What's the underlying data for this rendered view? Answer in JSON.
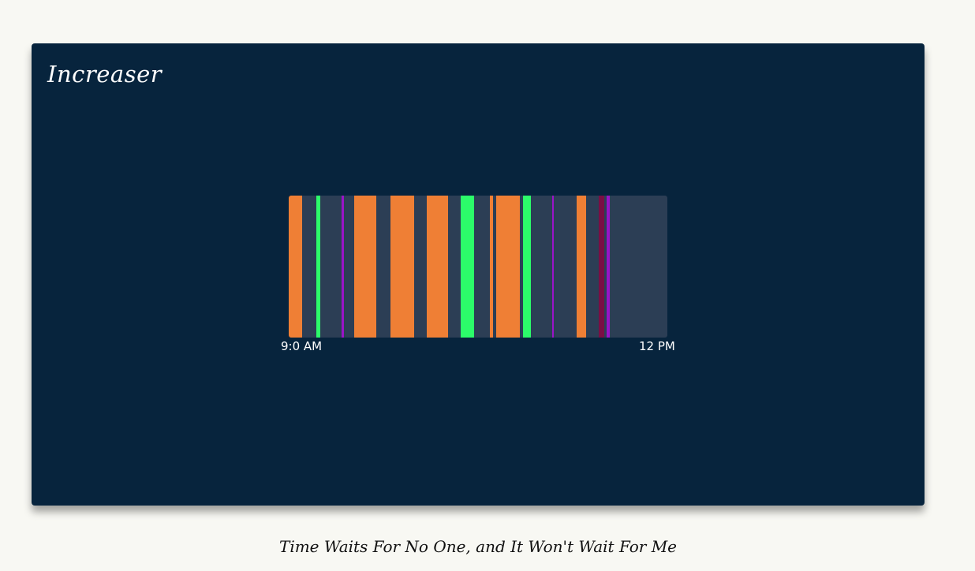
{
  "app": {
    "title": "Increaser"
  },
  "timeline": {
    "start_label": "9:0 AM",
    "end_label": "12 PM",
    "colors": {
      "track": "#2c3e55",
      "orange": "#ef7f35",
      "green": "#2cfb6a",
      "purple": "#9a14c8",
      "crimson": "#7a0e44"
    },
    "segments": [
      {
        "start": 0.0,
        "end": 0.035,
        "color": "orange"
      },
      {
        "start": 0.073,
        "end": 0.083,
        "color": "green"
      },
      {
        "start": 0.14,
        "end": 0.146,
        "color": "purple"
      },
      {
        "start": 0.173,
        "end": 0.231,
        "color": "orange"
      },
      {
        "start": 0.269,
        "end": 0.331,
        "color": "orange"
      },
      {
        "start": 0.365,
        "end": 0.421,
        "color": "orange"
      },
      {
        "start": 0.454,
        "end": 0.49,
        "color": "green"
      },
      {
        "start": 0.531,
        "end": 0.54,
        "color": "orange"
      },
      {
        "start": 0.548,
        "end": 0.61,
        "color": "orange"
      },
      {
        "start": 0.619,
        "end": 0.64,
        "color": "green"
      },
      {
        "start": 0.696,
        "end": 0.699,
        "color": "purple"
      },
      {
        "start": 0.76,
        "end": 0.785,
        "color": "orange"
      },
      {
        "start": 0.819,
        "end": 0.833,
        "color": "crimson"
      },
      {
        "start": 0.84,
        "end": 0.848,
        "color": "purple"
      }
    ]
  },
  "footer": {
    "tagline": "Time Waits For No One, and It Won't Wait For Me"
  }
}
